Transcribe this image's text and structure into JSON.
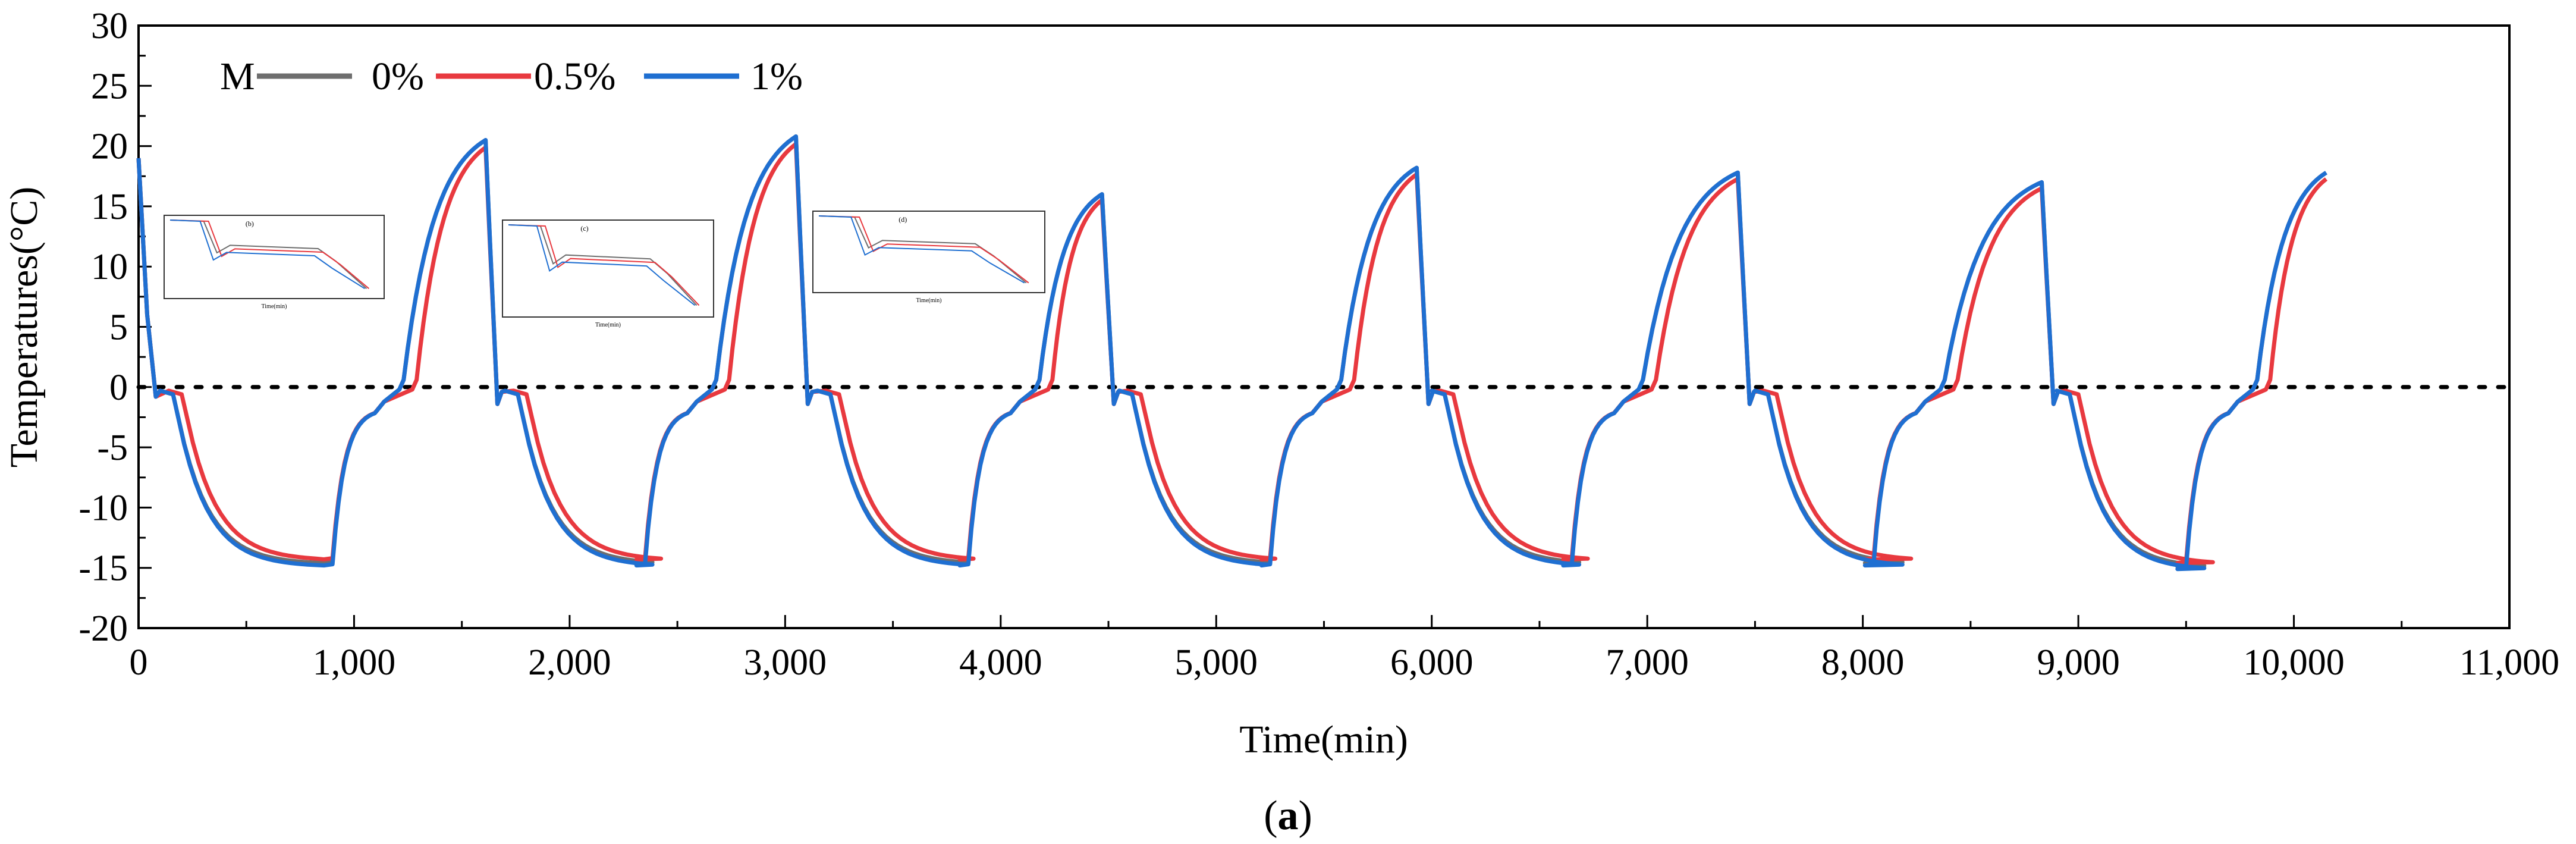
{
  "chart_data": {
    "type": "line",
    "title": "",
    "xlabel": "Time(min)",
    "ylabel": "Temperatures(°C)",
    "xlim": [
      0,
      11000
    ],
    "ylim": [
      -20,
      30
    ],
    "x_ticks": [
      0,
      1000,
      2000,
      3000,
      4000,
      5000,
      6000,
      7000,
      8000,
      9000,
      10000,
      11000
    ],
    "x_tick_labels": [
      "0",
      "1,000",
      "2,000",
      "3,000",
      "4,000",
      "5,000",
      "6,000",
      "7,000",
      "8,000",
      "9,000",
      "10,000",
      "11,000"
    ],
    "y_ticks": [
      -20,
      -15,
      -10,
      -5,
      0,
      5,
      10,
      15,
      20,
      25,
      30
    ],
    "y_tick_labels": [
      "-20",
      "-15",
      "-10",
      "-5",
      "0",
      "5",
      "10",
      "15",
      "20",
      "25",
      "30"
    ],
    "legend": {
      "placement": "top-left",
      "title": "M"
    },
    "reference_line": {
      "y": 0,
      "style": "dotted",
      "color": "#000000"
    },
    "cycle_period_min": 1424,
    "cycles": [
      {
        "freeze_start": 100,
        "min_temp": -14.5,
        "thaw_start": 900,
        "peak_temp": 20.5,
        "peak_time": 1610
      },
      {
        "freeze_start": 1700,
        "min_temp": -14.5,
        "thaw_start": 2350,
        "peak_temp": 20.8,
        "peak_time": 3050
      },
      {
        "freeze_start": 3150,
        "min_temp": -14.5,
        "thaw_start": 3850,
        "peak_temp": 16.0,
        "peak_time": 4470
      },
      {
        "freeze_start": 4550,
        "min_temp": -14.5,
        "thaw_start": 5250,
        "peak_temp": 18.2,
        "peak_time": 5930
      },
      {
        "freeze_start": 6000,
        "min_temp": -14.5,
        "thaw_start": 6650,
        "peak_temp": 17.8,
        "peak_time": 7420
      },
      {
        "freeze_start": 7500,
        "min_temp": -14.5,
        "thaw_start": 8050,
        "peak_temp": 17.0,
        "peak_time": 8830
      },
      {
        "freeze_start": 8900,
        "min_temp": -14.8,
        "thaw_start": 9500,
        "peak_temp": 17.8,
        "peak_time": 10150
      }
    ],
    "series": [
      {
        "name": "0%",
        "color": "#6e6e6e",
        "lag": 0,
        "amp": 1.0,
        "min_offset": 0.0
      },
      {
        "name": "0.5%",
        "color": "#e8393f",
        "lag": 40,
        "amp": 0.97,
        "min_offset": 0.3
      },
      {
        "name": "1%",
        "color": "#1f6fd1",
        "lag": 0,
        "amp": 1.0,
        "min_offset": -0.2
      }
    ],
    "insets": [
      {
        "name": "inset-1",
        "label": "(b)",
        "xlabel": "Time(min)"
      },
      {
        "name": "inset-2",
        "label": "(c)",
        "xlabel": "Time(min)"
      },
      {
        "name": "inset-3",
        "label": "(d)",
        "xlabel": "Time(min)"
      }
    ]
  },
  "caption": {
    "open": "(",
    "letter": "a",
    "close": ")"
  }
}
